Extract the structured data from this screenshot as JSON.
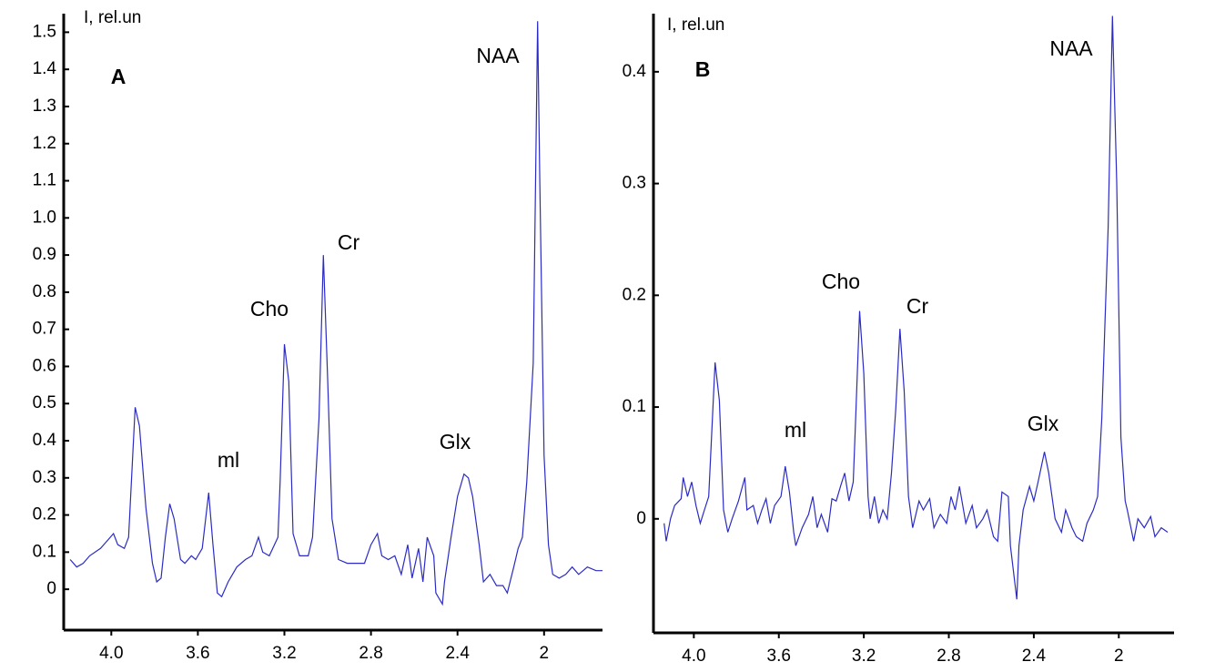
{
  "chart_data": [
    {
      "type": "line",
      "ylabel": "I, rel.un",
      "annotations": [
        "A",
        "NAA",
        "Cr",
        "Cho",
        "ml",
        "Glx"
      ],
      "xlim": [
        4.22,
        1.73
      ],
      "ylim": [
        -0.11,
        1.55
      ],
      "xticks": [
        {
          "value": 4,
          "label": "4.0"
        },
        3.6,
        3.2,
        2.8,
        2.4,
        2
      ],
      "yticks": [
        0,
        0.1,
        0.2,
        0.3,
        0.4,
        0.5,
        0.6,
        0.7,
        0.8,
        0.9,
        {
          "value": 1,
          "label": "1.0"
        },
        1.1,
        1.2,
        1.3,
        1.4,
        1.5
      ],
      "color": "#2b2bc4",
      "x": [
        4.19,
        4.16,
        4.13,
        4.1,
        4.05,
        4.02,
        3.99,
        3.97,
        3.94,
        3.92,
        3.89,
        3.87,
        3.84,
        3.81,
        3.79,
        3.77,
        3.75,
        3.73,
        3.71,
        3.68,
        3.66,
        3.63,
        3.61,
        3.58,
        3.55,
        3.53,
        3.51,
        3.49,
        3.46,
        3.42,
        3.38,
        3.35,
        3.32,
        3.3,
        3.27,
        3.23,
        3.22,
        3.2,
        3.18,
        3.16,
        3.13,
        3.09,
        3.07,
        3.04,
        3.02,
        3.0,
        2.98,
        2.95,
        2.91,
        2.87,
        2.83,
        2.8,
        2.77,
        2.75,
        2.72,
        2.69,
        2.66,
        2.63,
        2.61,
        2.58,
        2.56,
        2.54,
        2.51,
        2.5,
        2.47,
        2.46,
        2.43,
        2.4,
        2.37,
        2.35,
        2.33,
        2.3,
        2.28,
        2.25,
        2.22,
        2.19,
        2.17,
        2.14,
        2.12,
        2.1,
        2.08,
        2.05,
        2.03,
        2.02,
        2.0,
        1.98,
        1.96,
        1.93,
        1.9,
        1.87,
        1.84,
        1.8,
        1.76,
        1.73
      ],
      "values": [
        0.08,
        0.06,
        0.07,
        0.09,
        0.11,
        0.13,
        0.15,
        0.12,
        0.11,
        0.14,
        0.49,
        0.44,
        0.22,
        0.07,
        0.02,
        0.03,
        0.14,
        0.23,
        0.19,
        0.08,
        0.07,
        0.09,
        0.08,
        0.11,
        0.26,
        0.12,
        -0.01,
        -0.02,
        0.02,
        0.06,
        0.08,
        0.09,
        0.14,
        0.1,
        0.09,
        0.14,
        0.29,
        0.66,
        0.56,
        0.15,
        0.09,
        0.09,
        0.14,
        0.46,
        0.9,
        0.56,
        0.19,
        0.08,
        0.07,
        0.07,
        0.07,
        0.12,
        0.15,
        0.09,
        0.08,
        0.09,
        0.04,
        0.12,
        0.03,
        0.11,
        0.02,
        0.14,
        0.09,
        -0.01,
        -0.04,
        0.02,
        0.14,
        0.25,
        0.31,
        0.3,
        0.25,
        0.12,
        0.02,
        0.04,
        0.01,
        0.01,
        -0.01,
        0.06,
        0.11,
        0.14,
        0.29,
        0.61,
        1.53,
        1.1,
        0.36,
        0.12,
        0.04,
        0.03,
        0.04,
        0.06,
        0.04,
        0.06,
        0.05,
        0.05
      ]
    },
    {
      "type": "line",
      "ylabel": "I, rel.un",
      "annotations": [
        "B",
        "NAA",
        "Cho",
        "Cr",
        "ml",
        "Glx"
      ],
      "xlim": [
        4.19,
        1.74
      ],
      "ylim": [
        -0.102,
        0.452
      ],
      "xticks": [
        {
          "value": 4,
          "label": "4.0"
        },
        3.6,
        3.2,
        2.8,
        2.4,
        2
      ],
      "yticks": [
        0,
        0.1,
        0.2,
        0.3,
        0.4
      ],
      "color": "#2b2bc4",
      "x": [
        4.14,
        4.13,
        4.11,
        4.09,
        4.06,
        4.05,
        4.03,
        4.01,
        3.99,
        3.97,
        3.95,
        3.93,
        3.9,
        3.88,
        3.86,
        3.84,
        3.82,
        3.79,
        3.76,
        3.75,
        3.72,
        3.7,
        3.68,
        3.66,
        3.64,
        3.62,
        3.59,
        3.57,
        3.55,
        3.53,
        3.52,
        3.49,
        3.46,
        3.44,
        3.42,
        3.4,
        3.37,
        3.35,
        3.33,
        3.31,
        3.29,
        3.27,
        3.25,
        3.24,
        3.22,
        3.2,
        3.18,
        3.17,
        3.15,
        3.13,
        3.11,
        3.09,
        3.07,
        3.05,
        3.03,
        3.01,
        2.99,
        2.97,
        2.94,
        2.92,
        2.89,
        2.87,
        2.84,
        2.81,
        2.79,
        2.77,
        2.75,
        2.72,
        2.69,
        2.67,
        2.64,
        2.62,
        2.59,
        2.57,
        2.55,
        2.52,
        2.51,
        2.48,
        2.47,
        2.45,
        2.42,
        2.4,
        2.38,
        2.35,
        2.33,
        2.3,
        2.27,
        2.25,
        2.22,
        2.2,
        2.17,
        2.15,
        2.12,
        2.1,
        2.08,
        2.05,
        2.03,
        2.01,
        1.99,
        1.97,
        1.96,
        1.93,
        1.91,
        1.88,
        1.85,
        1.83,
        1.8,
        1.77
      ],
      "values": [
        -0.004,
        -0.02,
        0,
        0.012,
        0.018,
        0.037,
        0.02,
        0.033,
        0.012,
        -0.004,
        0.008,
        0.02,
        0.14,
        0.106,
        0.008,
        -0.012,
        0,
        0.016,
        0.037,
        0.008,
        0.012,
        -0.004,
        0.008,
        0.018,
        -0.004,
        0.012,
        0.02,
        0.047,
        0.024,
        -0.012,
        -0.024,
        -0.008,
        0.004,
        0.02,
        -0.008,
        0.004,
        -0.012,
        0.018,
        0.016,
        0.029,
        0.041,
        0.016,
        0.033,
        0.082,
        0.186,
        0.13,
        0.02,
        0,
        0.02,
        -0.004,
        0.008,
        0,
        0.041,
        0.098,
        0.17,
        0.114,
        0.02,
        -0.008,
        0.016,
        0.008,
        0.018,
        -0.008,
        0.004,
        -0.004,
        0.02,
        0.008,
        0.029,
        -0.004,
        0.012,
        -0.008,
        0,
        0.008,
        -0.016,
        -0.02,
        0.024,
        0.02,
        -0.024,
        -0.072,
        -0.024,
        0.008,
        0.029,
        0.016,
        0.033,
        0.06,
        0.041,
        0,
        -0.012,
        0.008,
        -0.008,
        -0.016,
        -0.02,
        -0.004,
        0.008,
        0.02,
        0.09,
        0.261,
        0.45,
        0.301,
        0.073,
        0.016,
        0.008,
        -0.02,
        0,
        -0.008,
        0.002,
        -0.016,
        -0.008,
        -0.012
      ]
    }
  ]
}
